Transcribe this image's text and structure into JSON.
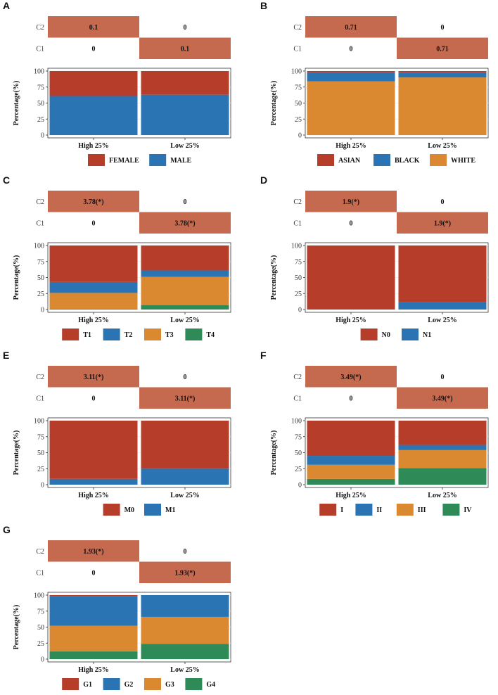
{
  "colors": {
    "heat_high": "#C56A4F",
    "heat_bg": "#EBEBEB",
    "cell_bg": "#FFFFFF",
    "grid": "#EBEBEB",
    "series": [
      "#B73D2B",
      "#2A74B3",
      "#DA8930",
      "#2E8B57"
    ]
  },
  "chart_data": [
    {
      "label": "A",
      "type": "bar",
      "stacked": true,
      "heatmap": {
        "rows": [
          "C2",
          "C1"
        ],
        "values": [
          [
            "0.1",
            "0"
          ],
          [
            "0",
            "0.1"
          ]
        ]
      },
      "categories": [
        "High 25%",
        "Low 25%"
      ],
      "ylabel": "Percentage(%)",
      "ylim": [
        0,
        100
      ],
      "yticks": [
        0,
        25,
        50,
        75,
        100
      ],
      "series": [
        {
          "name": "FEMALE",
          "values": [
            39,
            37
          ]
        },
        {
          "name": "MALE",
          "values": [
            61,
            63
          ]
        }
      ]
    },
    {
      "label": "B",
      "type": "bar",
      "stacked": true,
      "heatmap": {
        "rows": [
          "C2",
          "C1"
        ],
        "values": [
          [
            "0.71",
            "0"
          ],
          [
            "0",
            "0.71"
          ]
        ]
      },
      "categories": [
        "High 25%",
        "Low 25%"
      ],
      "ylabel": "Percentage(%)",
      "ylim": [
        0,
        100
      ],
      "yticks": [
        0,
        25,
        50,
        75,
        100
      ],
      "series": [
        {
          "name": "ASIAN",
          "values": [
            2,
            2
          ]
        },
        {
          "name": "BLACK",
          "values": [
            14,
            8
          ]
        },
        {
          "name": "WHITE",
          "values": [
            84,
            90
          ]
        }
      ]
    },
    {
      "label": "C",
      "type": "bar",
      "stacked": true,
      "heatmap": {
        "rows": [
          "C2",
          "C1"
        ],
        "values": [
          [
            "3.78(*)",
            "0"
          ],
          [
            "0",
            "3.78(*)"
          ]
        ]
      },
      "categories": [
        "High 25%",
        "Low 25%"
      ],
      "ylabel": "Percentage(%)",
      "ylim": [
        0,
        100
      ],
      "yticks": [
        0,
        25,
        50,
        75,
        100
      ],
      "series": [
        {
          "name": "T1",
          "values": [
            57,
            39
          ]
        },
        {
          "name": "T2",
          "values": [
            17,
            10
          ]
        },
        {
          "name": "T3",
          "values": [
            25,
            44
          ]
        },
        {
          "name": "T4",
          "values": [
            1,
            7
          ]
        }
      ]
    },
    {
      "label": "D",
      "type": "bar",
      "stacked": true,
      "heatmap": {
        "rows": [
          "C2",
          "C1"
        ],
        "values": [
          [
            "1.9(*)",
            "0"
          ],
          [
            "0",
            "1.9(*)"
          ]
        ]
      },
      "categories": [
        "High 25%",
        "Low 25%"
      ],
      "ylabel": "Percentage(%)",
      "ylim": [
        0,
        100
      ],
      "yticks": [
        0,
        25,
        50,
        75,
        100
      ],
      "series": [
        {
          "name": "N0",
          "values": [
            100,
            88
          ]
        },
        {
          "name": "N1",
          "values": [
            0,
            12
          ]
        }
      ]
    },
    {
      "label": "E",
      "type": "bar",
      "stacked": true,
      "heatmap": {
        "rows": [
          "C2",
          "C1"
        ],
        "values": [
          [
            "3.11(*)",
            "0"
          ],
          [
            "0",
            "3.11(*)"
          ]
        ]
      },
      "categories": [
        "High 25%",
        "Low 25%"
      ],
      "ylabel": "Percentage(%)",
      "ylim": [
        0,
        100
      ],
      "yticks": [
        0,
        25,
        50,
        75,
        100
      ],
      "series": [
        {
          "name": "M0",
          "values": [
            91,
            75
          ]
        },
        {
          "name": "M1",
          "values": [
            9,
            25
          ]
        }
      ]
    },
    {
      "label": "F",
      "type": "bar",
      "stacked": true,
      "heatmap": {
        "rows": [
          "C2",
          "C1"
        ],
        "values": [
          [
            "3.49(*)",
            "0"
          ],
          [
            "0",
            "3.49(*)"
          ]
        ]
      },
      "categories": [
        "High 25%",
        "Low 25%"
      ],
      "ylabel": "Percentage(%)",
      "ylim": [
        0,
        100
      ],
      "yticks": [
        0,
        25,
        50,
        75,
        100
      ],
      "series": [
        {
          "name": "I",
          "values": [
            55,
            38
          ]
        },
        {
          "name": "II",
          "values": [
            14,
            8
          ]
        },
        {
          "name": "III",
          "values": [
            22,
            28
          ]
        },
        {
          "name": "IV",
          "values": [
            9,
            26
          ]
        }
      ]
    },
    {
      "label": "G",
      "type": "bar",
      "stacked": true,
      "heatmap": {
        "rows": [
          "C2",
          "C1"
        ],
        "values": [
          [
            "1.93(*)",
            "0"
          ],
          [
            "0",
            "1.93(*)"
          ]
        ]
      },
      "categories": [
        "High 25%",
        "Low 25%"
      ],
      "ylabel": "Percentage(%)",
      "ylim": [
        0,
        100
      ],
      "yticks": [
        0,
        25,
        50,
        75,
        100
      ],
      "series": [
        {
          "name": "G1",
          "values": [
            2,
            0
          ]
        },
        {
          "name": "G2",
          "values": [
            46,
            34
          ]
        },
        {
          "name": "G3",
          "values": [
            40,
            42
          ]
        },
        {
          "name": "G4",
          "values": [
            12,
            24
          ]
        }
      ]
    }
  ]
}
